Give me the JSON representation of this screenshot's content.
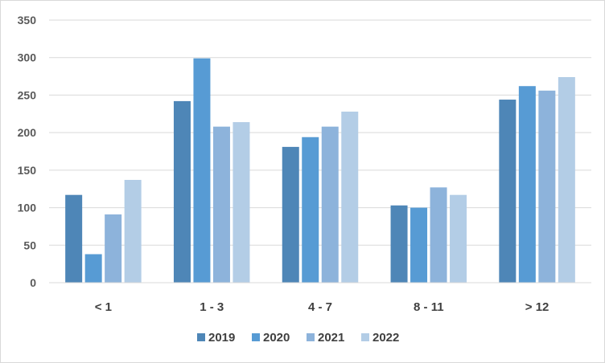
{
  "chart_data": {
    "type": "bar",
    "title": "",
    "xlabel": "",
    "ylabel": "",
    "categories": [
      "< 1",
      "1 - 3",
      "4 - 7",
      "8 - 11",
      "> 12"
    ],
    "series": [
      {
        "name": "2019",
        "color": "#4e86b7",
        "values": [
          117,
          242,
          181,
          103,
          244
        ]
      },
      {
        "name": "2020",
        "color": "#579bd4",
        "values": [
          38,
          299,
          194,
          100,
          262
        ]
      },
      {
        "name": "2021",
        "color": "#8db3db",
        "values": [
          91,
          208,
          208,
          127,
          256
        ]
      },
      {
        "name": "2022",
        "color": "#b3cde6",
        "values": [
          137,
          214,
          228,
          117,
          274
        ]
      }
    ],
    "ylim": [
      0,
      350
    ],
    "yticks": [
      "0",
      "50",
      "100",
      "150",
      "200",
      "250",
      "300",
      "350"
    ],
    "grid": true,
    "legend_position": "bottom"
  }
}
